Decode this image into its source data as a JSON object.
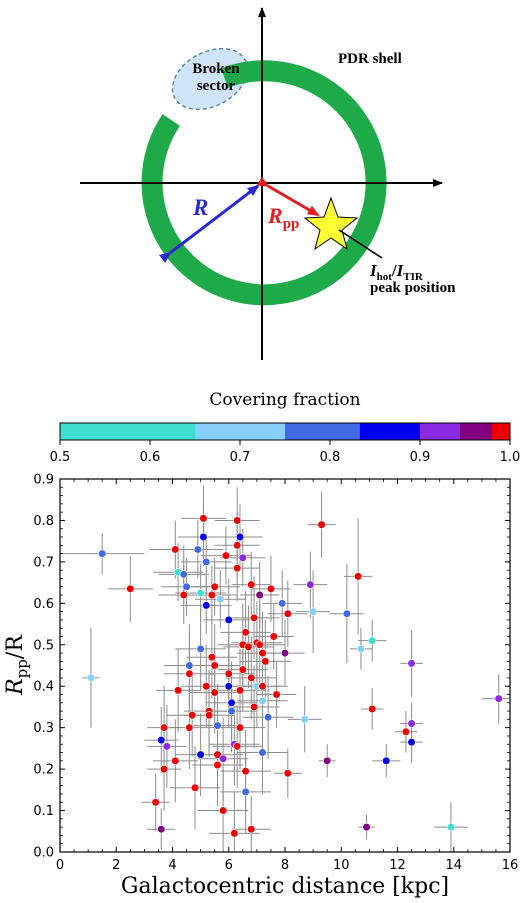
{
  "diagram": {
    "broken_sector_label_line1": "Broken",
    "broken_sector_label_line2": "sector",
    "pdr_shell_label": "PDR shell",
    "radius_label": "R",
    "rpp_label_main": "R",
    "rpp_label_sub": "pp",
    "peak_label_I1": "I",
    "peak_label_sub1": "hot",
    "peak_label_slash": "/",
    "peak_label_I2": "I",
    "peak_label_sub2": "TIR",
    "peak_label_line2": "peak position",
    "colors": {
      "shell": "#1faa4a",
      "radius_arrow": "#2a2ad0",
      "rpp_arrow": "#e02020",
      "star_fill": "#ffff33",
      "broken_fill": "#cfe4f8"
    }
  },
  "colorbar": {
    "title": "Covering fraction",
    "ticks": [
      "0.5",
      "0.6",
      "0.7",
      "0.8",
      "0.9",
      "1.0"
    ],
    "tick_values": [
      0.5,
      0.6,
      0.7,
      0.8,
      0.9,
      1.0
    ],
    "segments": [
      {
        "from": 0.5,
        "to": 0.65,
        "color": "#40e0d0"
      },
      {
        "from": 0.65,
        "to": 0.75,
        "color": "#87cefa"
      },
      {
        "from": 0.75,
        "to": 0.833,
        "color": "#4169e1"
      },
      {
        "from": 0.833,
        "to": 0.9,
        "color": "#0000ee"
      },
      {
        "from": 0.9,
        "to": 0.944,
        "color": "#8a2be2"
      },
      {
        "from": 0.944,
        "to": 0.98,
        "color": "#800080"
      },
      {
        "from": 0.98,
        "to": 1.0,
        "color": "#ee0000"
      }
    ]
  },
  "chart_data": {
    "type": "scatter",
    "xlabel": "Galactocentric distance [kpc]",
    "ylabel_main": "R",
    "ylabel_sub": "pp",
    "ylabel_tail": "/R",
    "xlim": [
      0,
      16
    ],
    "ylim": [
      0,
      0.9
    ],
    "xticks": [
      "0",
      "2",
      "4",
      "6",
      "8",
      "10",
      "12",
      "14",
      "16"
    ],
    "xtick_values": [
      0,
      2,
      4,
      6,
      8,
      10,
      12,
      14,
      16
    ],
    "yticks": [
      "0.0",
      "0.1",
      "0.2",
      "0.3",
      "0.4",
      "0.5",
      "0.6",
      "0.7",
      "0.8",
      "0.9"
    ],
    "ytick_values": [
      0.0,
      0.1,
      0.2,
      0.3,
      0.4,
      0.5,
      0.6,
      0.7,
      0.8,
      0.9
    ],
    "grid": false,
    "points": [
      {
        "x": 1.5,
        "y": 0.72,
        "xerr": 1.5,
        "yerr": 0.05,
        "c": "#4169e1"
      },
      {
        "x": 2.5,
        "y": 0.635,
        "xerr": 0.8,
        "yerr": 0.08,
        "c": "#ee0000"
      },
      {
        "x": 1.1,
        "y": 0.42,
        "xerr": 0.3,
        "yerr": 0.12,
        "c": "#87cefa"
      },
      {
        "x": 3.4,
        "y": 0.12,
        "xerr": 0.5,
        "yerr": 0.07,
        "c": "#ee0000"
      },
      {
        "x": 3.6,
        "y": 0.055,
        "xerr": 0.5,
        "yerr": 0.05,
        "c": "#800080"
      },
      {
        "x": 3.6,
        "y": 0.27,
        "xerr": 0.6,
        "yerr": 0.08,
        "c": "#0000ee"
      },
      {
        "x": 3.8,
        "y": 0.255,
        "xerr": 0.7,
        "yerr": 0.1,
        "c": "#8a2be2"
      },
      {
        "x": 3.7,
        "y": 0.3,
        "xerr": 0.6,
        "yerr": 0.1,
        "c": "#ee0000"
      },
      {
        "x": 3.7,
        "y": 0.2,
        "xerr": 0.6,
        "yerr": 0.1,
        "c": "#ee0000"
      },
      {
        "x": 4.1,
        "y": 0.22,
        "xerr": 0.8,
        "yerr": 0.1,
        "c": "#ee0000"
      },
      {
        "x": 4.2,
        "y": 0.39,
        "xerr": 0.8,
        "yerr": 0.1,
        "c": "#ee0000"
      },
      {
        "x": 4.1,
        "y": 0.73,
        "xerr": 0.9,
        "yerr": 0.07,
        "c": "#ee0000"
      },
      {
        "x": 4.2,
        "y": 0.675,
        "xerr": 0.9,
        "yerr": 0.07,
        "c": "#40e0d0"
      },
      {
        "x": 4.4,
        "y": 0.67,
        "xerr": 0.9,
        "yerr": 0.07,
        "c": "#4169e1"
      },
      {
        "x": 4.4,
        "y": 0.62,
        "xerr": 0.9,
        "yerr": 0.07,
        "c": "#ee0000"
      },
      {
        "x": 4.5,
        "y": 0.64,
        "xerr": 0.9,
        "yerr": 0.07,
        "c": "#4169e1"
      },
      {
        "x": 4.6,
        "y": 0.45,
        "xerr": 0.9,
        "yerr": 0.1,
        "c": "#4169e1"
      },
      {
        "x": 4.6,
        "y": 0.43,
        "xerr": 0.9,
        "yerr": 0.1,
        "c": "#ee0000"
      },
      {
        "x": 4.7,
        "y": 0.33,
        "xerr": 0.9,
        "yerr": 0.1,
        "c": "#ee0000"
      },
      {
        "x": 4.6,
        "y": 0.3,
        "xerr": 0.9,
        "yerr": 0.1,
        "c": "#ee0000"
      },
      {
        "x": 4.8,
        "y": 0.155,
        "xerr": 0.9,
        "yerr": 0.1,
        "c": "#ee0000"
      },
      {
        "x": 4.9,
        "y": 0.73,
        "xerr": 0.9,
        "yerr": 0.07,
        "c": "#4169e1"
      },
      {
        "x": 5.0,
        "y": 0.625,
        "xerr": 0.9,
        "yerr": 0.07,
        "c": "#40e0d0"
      },
      {
        "x": 5.0,
        "y": 0.49,
        "xerr": 0.9,
        "yerr": 0.1,
        "c": "#4169e1"
      },
      {
        "x": 5.0,
        "y": 0.235,
        "xerr": 0.9,
        "yerr": 0.1,
        "c": "#0000ee"
      },
      {
        "x": 5.1,
        "y": 0.76,
        "xerr": 0.9,
        "yerr": 0.07,
        "c": "#0000ee"
      },
      {
        "x": 5.1,
        "y": 0.805,
        "xerr": 0.8,
        "yerr": 0.08,
        "c": "#ee0000"
      },
      {
        "x": 5.2,
        "y": 0.7,
        "xerr": 0.9,
        "yerr": 0.07,
        "c": "#4169e1"
      },
      {
        "x": 5.2,
        "y": 0.595,
        "xerr": 0.9,
        "yerr": 0.07,
        "c": "#0000ee"
      },
      {
        "x": 5.2,
        "y": 0.4,
        "xerr": 0.9,
        "yerr": 0.1,
        "c": "#ee0000"
      },
      {
        "x": 5.3,
        "y": 0.34,
        "xerr": 0.9,
        "yerr": 0.1,
        "c": "#ee0000"
      },
      {
        "x": 5.3,
        "y": 0.33,
        "xerr": 0.9,
        "yerr": 0.1,
        "c": "#ee0000"
      },
      {
        "x": 5.4,
        "y": 0.47,
        "xerr": 0.9,
        "yerr": 0.1,
        "c": "#ee0000"
      },
      {
        "x": 5.4,
        "y": 0.62,
        "xerr": 0.9,
        "yerr": 0.07,
        "c": "#ee0000"
      },
      {
        "x": 5.5,
        "y": 0.64,
        "xerr": 0.9,
        "yerr": 0.07,
        "c": "#ee0000"
      },
      {
        "x": 5.5,
        "y": 0.45,
        "xerr": 0.9,
        "yerr": 0.1,
        "c": "#ee0000"
      },
      {
        "x": 5.5,
        "y": 0.385,
        "xerr": 0.9,
        "yerr": 0.1,
        "c": "#ee0000"
      },
      {
        "x": 5.6,
        "y": 0.235,
        "xerr": 0.9,
        "yerr": 0.1,
        "c": "#ee0000"
      },
      {
        "x": 5.6,
        "y": 0.21,
        "xerr": 0.9,
        "yerr": 0.1,
        "c": "#ee0000"
      },
      {
        "x": 5.6,
        "y": 0.305,
        "xerr": 0.9,
        "yerr": 0.1,
        "c": "#4169e1"
      },
      {
        "x": 5.7,
        "y": 0.61,
        "xerr": 0.9,
        "yerr": 0.07,
        "c": "#87cefa"
      },
      {
        "x": 5.8,
        "y": 0.225,
        "xerr": 0.9,
        "yerr": 0.1,
        "c": "#8a2be2"
      },
      {
        "x": 5.8,
        "y": 0.1,
        "xerr": 0.9,
        "yerr": 0.1,
        "c": "#ee0000"
      },
      {
        "x": 5.9,
        "y": 0.715,
        "xerr": 0.9,
        "yerr": 0.07,
        "c": "#ee0000"
      },
      {
        "x": 6.0,
        "y": 0.56,
        "xerr": 0.9,
        "yerr": 0.1,
        "c": "#0000ee"
      },
      {
        "x": 6.0,
        "y": 0.4,
        "xerr": 0.9,
        "yerr": 0.1,
        "c": "#0000ee"
      },
      {
        "x": 6.0,
        "y": 0.43,
        "xerr": 0.9,
        "yerr": 0.1,
        "c": "#ee0000"
      },
      {
        "x": 6.1,
        "y": 0.36,
        "xerr": 0.9,
        "yerr": 0.1,
        "c": "#0000ee"
      },
      {
        "x": 6.1,
        "y": 0.34,
        "xerr": 0.9,
        "yerr": 0.1,
        "c": "#4169e1"
      },
      {
        "x": 6.2,
        "y": 0.26,
        "xerr": 0.9,
        "yerr": 0.1,
        "c": "#8a2be2"
      },
      {
        "x": 6.2,
        "y": 0.045,
        "xerr": 0.9,
        "yerr": 0.1,
        "c": "#ee0000"
      },
      {
        "x": 6.3,
        "y": 0.8,
        "xerr": 0.8,
        "yerr": 0.08,
        "c": "#ee0000"
      },
      {
        "x": 6.3,
        "y": 0.74,
        "xerr": 0.8,
        "yerr": 0.08,
        "c": "#ee0000"
      },
      {
        "x": 6.3,
        "y": 0.685,
        "xerr": 0.8,
        "yerr": 0.08,
        "c": "#ee0000"
      },
      {
        "x": 6.3,
        "y": 0.255,
        "xerr": 0.9,
        "yerr": 0.1,
        "c": "#ee0000"
      },
      {
        "x": 6.4,
        "y": 0.76,
        "xerr": 0.8,
        "yerr": 0.08,
        "c": "#0000ee"
      },
      {
        "x": 6.4,
        "y": 0.39,
        "xerr": 0.9,
        "yerr": 0.1,
        "c": "#ee0000"
      },
      {
        "x": 6.4,
        "y": 0.3,
        "xerr": 0.9,
        "yerr": 0.1,
        "c": "#ee0000"
      },
      {
        "x": 6.5,
        "y": 0.71,
        "xerr": 0.8,
        "yerr": 0.07,
        "c": "#8a2be2"
      },
      {
        "x": 6.5,
        "y": 0.5,
        "xerr": 0.9,
        "yerr": 0.1,
        "c": "#ee0000"
      },
      {
        "x": 6.5,
        "y": 0.44,
        "xerr": 0.9,
        "yerr": 0.1,
        "c": "#ee0000"
      },
      {
        "x": 6.6,
        "y": 0.53,
        "xerr": 0.9,
        "yerr": 0.1,
        "c": "#ee0000"
      },
      {
        "x": 6.6,
        "y": 0.195,
        "xerr": 0.9,
        "yerr": 0.1,
        "c": "#ee0000"
      },
      {
        "x": 6.6,
        "y": 0.145,
        "xerr": 0.9,
        "yerr": 0.1,
        "c": "#4169e1"
      },
      {
        "x": 6.7,
        "y": 0.495,
        "xerr": 0.9,
        "yerr": 0.1,
        "c": "#ee0000"
      },
      {
        "x": 6.8,
        "y": 0.645,
        "xerr": 0.7,
        "yerr": 0.08,
        "c": "#ee0000"
      },
      {
        "x": 6.8,
        "y": 0.42,
        "xerr": 0.9,
        "yerr": 0.1,
        "c": "#ee0000"
      },
      {
        "x": 6.8,
        "y": 0.055,
        "xerr": 0.7,
        "yerr": 0.08,
        "c": "#ee0000"
      },
      {
        "x": 6.9,
        "y": 0.565,
        "xerr": 0.9,
        "yerr": 0.1,
        "c": "#ee0000"
      },
      {
        "x": 6.9,
        "y": 0.35,
        "xerr": 0.9,
        "yerr": 0.1,
        "c": "#ee0000"
      },
      {
        "x": 7.0,
        "y": 0.505,
        "xerr": 0.9,
        "yerr": 0.1,
        "c": "#ee0000"
      },
      {
        "x": 7.0,
        "y": 0.4,
        "xerr": 0.9,
        "yerr": 0.1,
        "c": "#87cefa"
      },
      {
        "x": 7.1,
        "y": 0.62,
        "xerr": 0.7,
        "yerr": 0.08,
        "c": "#800080"
      },
      {
        "x": 7.1,
        "y": 0.5,
        "xerr": 0.9,
        "yerr": 0.1,
        "c": "#ee0000"
      },
      {
        "x": 7.2,
        "y": 0.48,
        "xerr": 0.9,
        "yerr": 0.1,
        "c": "#ee0000"
      },
      {
        "x": 7.2,
        "y": 0.4,
        "xerr": 0.9,
        "yerr": 0.1,
        "c": "#ee0000"
      },
      {
        "x": 7.2,
        "y": 0.365,
        "xerr": 0.9,
        "yerr": 0.1,
        "c": "#87cefa"
      },
      {
        "x": 7.2,
        "y": 0.24,
        "xerr": 0.9,
        "yerr": 0.1,
        "c": "#4169e1"
      },
      {
        "x": 7.3,
        "y": 0.46,
        "xerr": 0.9,
        "yerr": 0.1,
        "c": "#ee0000"
      },
      {
        "x": 7.4,
        "y": 0.325,
        "xerr": 0.9,
        "yerr": 0.1,
        "c": "#4169e1"
      },
      {
        "x": 7.5,
        "y": 0.635,
        "xerr": 0.7,
        "yerr": 0.08,
        "c": "#ee0000"
      },
      {
        "x": 7.6,
        "y": 0.52,
        "xerr": 0.7,
        "yerr": 0.08,
        "c": "#ee0000"
      },
      {
        "x": 7.7,
        "y": 0.38,
        "xerr": 0.7,
        "yerr": 0.08,
        "c": "#ee0000"
      },
      {
        "x": 7.9,
        "y": 0.6,
        "xerr": 0.7,
        "yerr": 0.08,
        "c": "#4169e1"
      },
      {
        "x": 8.0,
        "y": 0.48,
        "xerr": 0.7,
        "yerr": 0.08,
        "c": "#800080"
      },
      {
        "x": 8.1,
        "y": 0.575,
        "xerr": 0.7,
        "yerr": 0.08,
        "c": "#ee0000"
      },
      {
        "x": 8.1,
        "y": 0.19,
        "xerr": 0.5,
        "yerr": 0.06,
        "c": "#ee0000"
      },
      {
        "x": 8.7,
        "y": 0.32,
        "xerr": 0.6,
        "yerr": 0.08,
        "c": "#87cefa"
      },
      {
        "x": 8.9,
        "y": 0.645,
        "xerr": 0.6,
        "yerr": 0.08,
        "c": "#8a2be2"
      },
      {
        "x": 9.0,
        "y": 0.58,
        "xerr": 0.6,
        "yerr": 0.1,
        "c": "#87cefa"
      },
      {
        "x": 9.3,
        "y": 0.79,
        "xerr": 0.5,
        "yerr": 0.08,
        "c": "#ee0000"
      },
      {
        "x": 9.5,
        "y": 0.22,
        "xerr": 0.3,
        "yerr": 0.04,
        "c": "#800080"
      },
      {
        "x": 10.2,
        "y": 0.575,
        "xerr": 0.6,
        "yerr": 0.12,
        "c": "#4169e1"
      },
      {
        "x": 10.6,
        "y": 0.665,
        "xerr": 0.5,
        "yerr": 0.14,
        "c": "#ee0000"
      },
      {
        "x": 10.7,
        "y": 0.49,
        "xerr": 0.4,
        "yerr": 0.05,
        "c": "#87cefa"
      },
      {
        "x": 10.9,
        "y": 0.06,
        "xerr": 0.3,
        "yerr": 0.03,
        "c": "#800080"
      },
      {
        "x": 11.1,
        "y": 0.51,
        "xerr": 0.5,
        "yerr": 0.05,
        "c": "#40e0d0"
      },
      {
        "x": 11.1,
        "y": 0.345,
        "xerr": 0.4,
        "yerr": 0.05,
        "c": "#ee0000"
      },
      {
        "x": 11.6,
        "y": 0.22,
        "xerr": 0.5,
        "yerr": 0.04,
        "c": "#0000ee"
      },
      {
        "x": 12.3,
        "y": 0.29,
        "xerr": 0.4,
        "yerr": 0.05,
        "c": "#ee0000"
      },
      {
        "x": 12.5,
        "y": 0.455,
        "xerr": 0.4,
        "yerr": 0.08,
        "c": "#8a2be2"
      },
      {
        "x": 12.5,
        "y": 0.31,
        "xerr": 0.4,
        "yerr": 0.05,
        "c": "#8a2be2"
      },
      {
        "x": 12.5,
        "y": 0.265,
        "xerr": 0.4,
        "yerr": 0.05,
        "c": "#0000ee"
      },
      {
        "x": 13.9,
        "y": 0.06,
        "xerr": 0.6,
        "yerr": 0.06,
        "c": "#40e0d0"
      },
      {
        "x": 15.6,
        "y": 0.37,
        "xerr": 0.6,
        "yerr": 0.06,
        "c": "#8a2be2"
      }
    ]
  }
}
